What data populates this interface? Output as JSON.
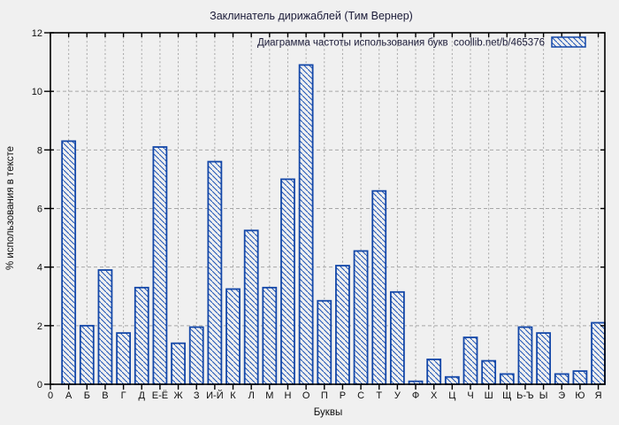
{
  "page": {
    "background": "#f0f0f0"
  },
  "colors": {
    "bar_blue": "#1347a8",
    "hatch_blue": "#1b52b5",
    "grid_gray": "#a6a6a6",
    "axis_black": "#000000",
    "plot_background": "#f0f0f0"
  },
  "chart_data": {
    "type": "bar",
    "title": "Заклинатель дирижаблей (Тим Вернер)",
    "legend_label": "Диаграмма частоты использования букв  coollib.net/b/465376",
    "legend_position": "top-right-inside",
    "xlabel": "Буквы",
    "ylabel": "% использования в тексте",
    "ylim": [
      0,
      12
    ],
    "yticks": [
      0,
      2,
      4,
      6,
      8,
      10,
      12
    ],
    "x_origin_label": "0",
    "grid": true,
    "bar_style": "hatched-diagonal-backslash",
    "categories": [
      "А",
      "Б",
      "В",
      "Г",
      "Д",
      "Е-Ё",
      "Ж",
      "З",
      "И-Й",
      "К",
      "Л",
      "М",
      "Н",
      "О",
      "П",
      "Р",
      "С",
      "Т",
      "У",
      "Ф",
      "Х",
      "Ц",
      "Ч",
      "Ш",
      "Щ",
      "Ь-Ъ",
      "Ы",
      "Э",
      "Ю",
      "Я"
    ],
    "values": [
      8.3,
      2.0,
      3.9,
      1.75,
      3.3,
      8.1,
      1.4,
      1.95,
      7.6,
      3.25,
      5.25,
      3.3,
      7.0,
      10.9,
      2.85,
      4.05,
      4.55,
      6.6,
      3.15,
      0.1,
      0.85,
      0.25,
      1.6,
      0.8,
      0.35,
      1.95,
      1.75,
      0.35,
      0.45,
      2.1
    ]
  }
}
